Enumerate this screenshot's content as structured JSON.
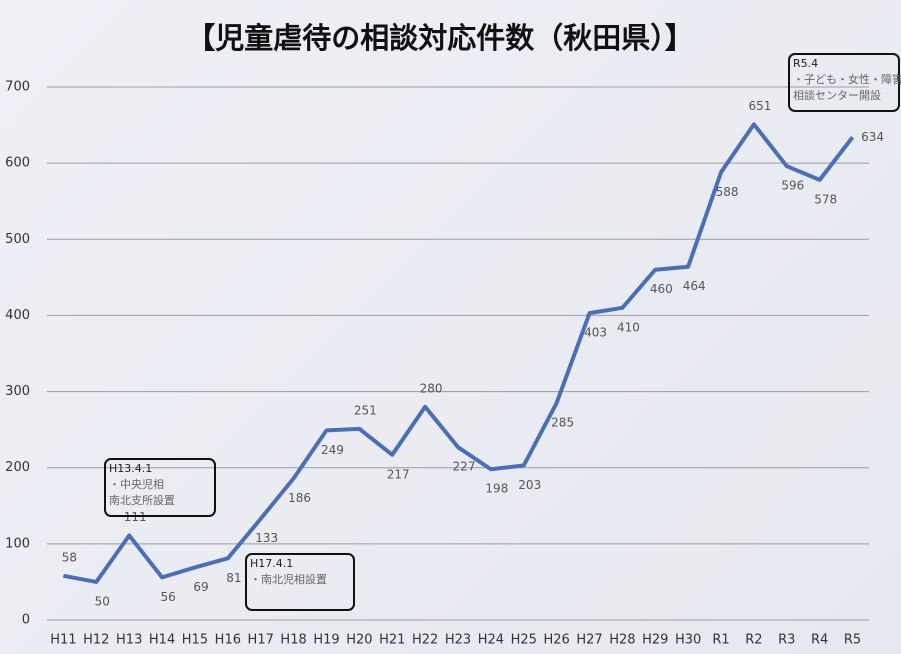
{
  "chart_data": {
    "type": "line",
    "title": "【児童虐待の相談対応件数（秋田県）】",
    "categories": [
      "H11",
      "H12",
      "H13",
      "H14",
      "H15",
      "H16",
      "H17",
      "H18",
      "H19",
      "H20",
      "H21",
      "H22",
      "H23",
      "H24",
      "H25",
      "H26",
      "H27",
      "H28",
      "H29",
      "H30",
      "R1",
      "R2",
      "R3",
      "R4",
      "R5"
    ],
    "series": [
      {
        "name": "相談対応件数",
        "color": "#4a6fb5",
        "values": [
          58,
          50,
          111,
          56,
          69,
          81,
          133,
          186,
          249,
          251,
          217,
          280,
          227,
          198,
          203,
          285,
          403,
          410,
          460,
          464,
          588,
          651,
          596,
          578,
          634
        ]
      }
    ],
    "ylim": [
      0,
      700
    ],
    "yticks": [
      0,
      100,
      200,
      300,
      400,
      500,
      600,
      700
    ],
    "grid": true,
    "annotations": [
      {
        "lines": [
          "H13.4.1",
          "・中央児相",
          "南北支所設置"
        ]
      },
      {
        "lines": [
          "H17.4.1",
          "・南北児相設置"
        ]
      },
      {
        "lines": [
          "R5.4",
          "・子ども・女性・障害者",
          "相談センター開設"
        ]
      }
    ]
  }
}
